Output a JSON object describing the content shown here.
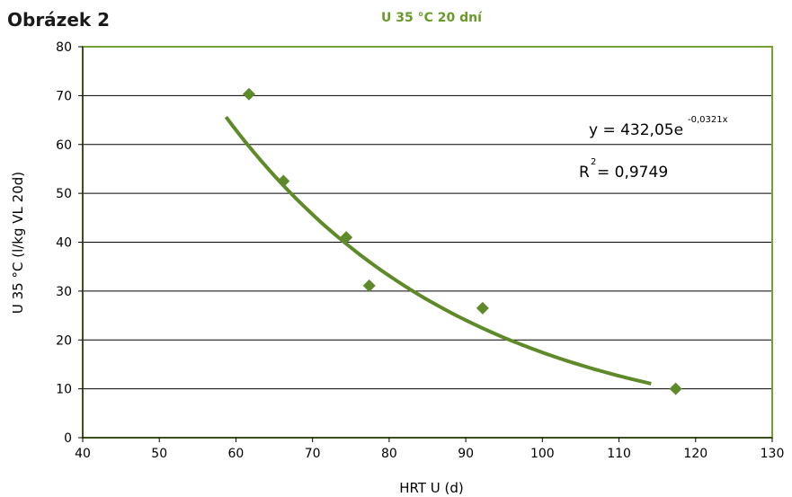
{
  "figure_label": "Obrázek 2",
  "chart_data": {
    "type": "scatter",
    "title": "U 35 °C  20 dní",
    "xlabel": "HRT U (d)",
    "ylabel": "U 35 °C (l/kg VL 20d)",
    "xlim": [
      40,
      130
    ],
    "ylim": [
      0,
      80
    ],
    "x_ticks": [
      40,
      50,
      60,
      70,
      80,
      90,
      100,
      110,
      120,
      130
    ],
    "y_ticks": [
      0,
      10,
      20,
      30,
      40,
      50,
      60,
      70,
      80
    ],
    "grid": "horizontal",
    "legend": "none",
    "points": [
      {
        "x": 61.7,
        "y": 70.3
      },
      {
        "x": 66.2,
        "y": 52.5
      },
      {
        "x": 74.4,
        "y": 41.0
      },
      {
        "x": 77.4,
        "y": 31.1
      },
      {
        "x": 92.2,
        "y": 26.5
      },
      {
        "x": 117.4,
        "y": 10.0
      }
    ],
    "trendline": {
      "type": "exponential",
      "a": 432.05,
      "b": -0.0321,
      "x_range": [
        58.7,
        114.2
      ],
      "equation_text": "y = 432,05e",
      "equation_exponent": "-0,0321x",
      "r2_prefix": "R",
      "r2_sup": "2",
      "r2_text": " = 0,9749"
    },
    "colors": {
      "marker": "#5f8a2a",
      "trendline": "#5f8a2a",
      "plot_border": "#77a033",
      "title": "#6a9a2a",
      "grid": "#000000"
    }
  }
}
